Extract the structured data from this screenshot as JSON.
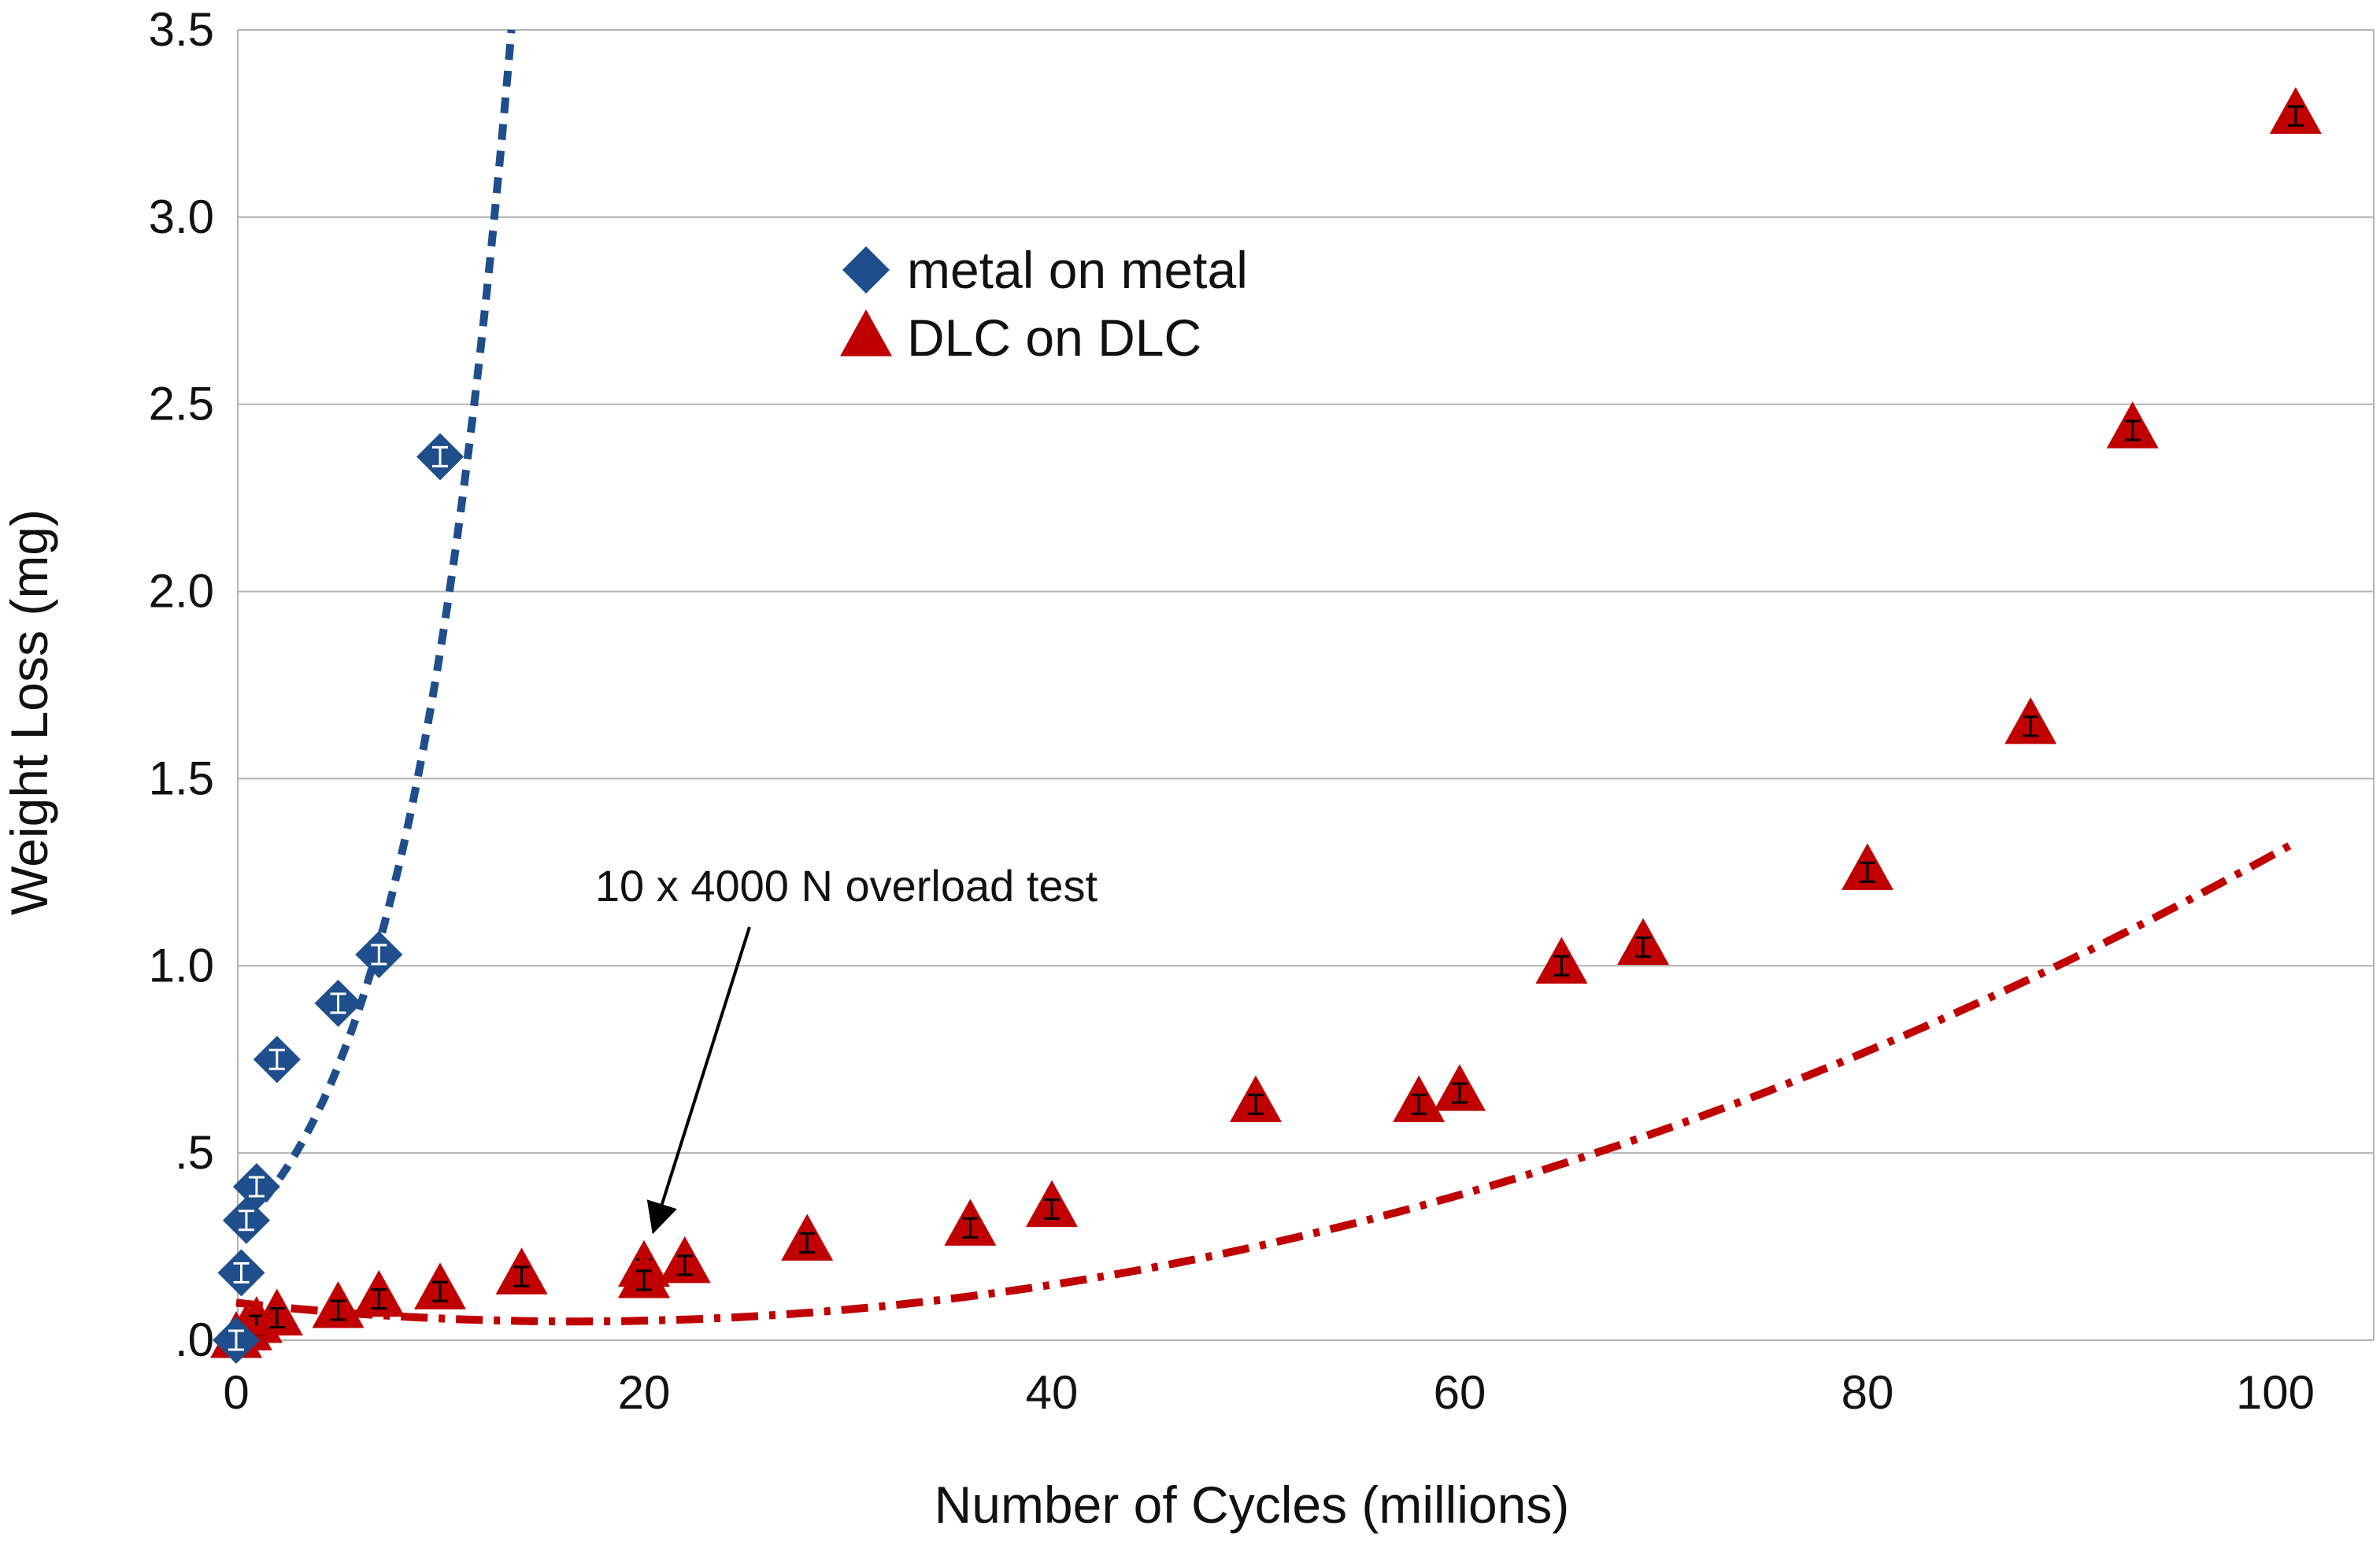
{
  "chart_data": {
    "type": "scatter",
    "title": "",
    "xlabel": "Number of Cycles (millions)",
    "ylabel": "Weight Loss (mg)",
    "xlim": [
      0,
      105
    ],
    "ylim": [
      0,
      3.5
    ],
    "xticks": [
      0,
      20,
      40,
      60,
      80,
      100
    ],
    "yticks": [
      0,
      0.5,
      1.0,
      1.5,
      2.0,
      2.5,
      3.0,
      3.5
    ],
    "ytick_labels": [
      ".0",
      ".5",
      "1.0",
      "1.5",
      "2.0",
      "2.5",
      "3.0",
      "3.5"
    ],
    "grid": "horizontal",
    "legend_position": "top-center",
    "series": [
      {
        "name": "metal on metal",
        "marker": "diamond",
        "color": "#1f4e8c",
        "x": [
          0,
          0.25,
          0.5,
          1.0,
          2.0,
          5.0,
          7.0,
          10.0
        ],
        "y": [
          0.0,
          0.18,
          0.32,
          0.41,
          0.75,
          0.9,
          1.03,
          2.36
        ],
        "trendline": {
          "style": "dashed",
          "color": "#1f4e8c",
          "x_range": [
            0.5,
            13.5
          ],
          "y_at_start": 0.32,
          "y_at_end": 3.5
        }
      },
      {
        "name": "DLC on DLC",
        "marker": "triangle",
        "color": "#c00000",
        "x": [
          0,
          0.5,
          1.0,
          2.0,
          5.0,
          7.0,
          10.0,
          14.0,
          20.0,
          20.0,
          22.0,
          28.0,
          36.0,
          40.0,
          50.0,
          58.0,
          60.0,
          65.0,
          69.0,
          80.0,
          88.0,
          93.0,
          101.0
        ],
        "y": [
          0.0,
          0.02,
          0.04,
          0.06,
          0.08,
          0.11,
          0.13,
          0.17,
          0.19,
          0.16,
          0.2,
          0.26,
          0.3,
          0.35,
          0.63,
          0.63,
          0.66,
          1.0,
          1.05,
          1.25,
          1.64,
          2.43,
          3.27
        ],
        "trendline": {
          "style": "dash-dot",
          "color": "#c00000",
          "type": "polynomial",
          "coefficients": [
            0.1,
            -0.006,
            0.00018
          ],
          "x_range": [
            0,
            101
          ]
        }
      }
    ],
    "annotations": [
      {
        "text": "10 x 4000 N overload test",
        "points_to_x": 20,
        "points_to_y": 0.27
      }
    ]
  }
}
